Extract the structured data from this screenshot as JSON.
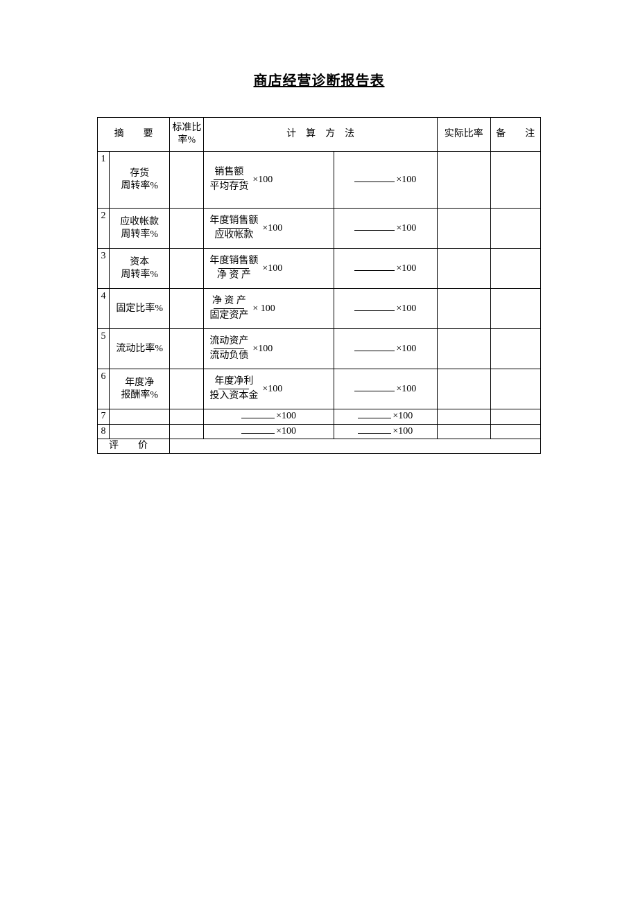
{
  "title": "商店经营诊断报告表",
  "headers": {
    "summary": "摘　　要",
    "standard_rate": "标准比率%",
    "calc_method": "计　算　方　法",
    "actual_rate": "实际比率",
    "note": "备　　注"
  },
  "rows": [
    {
      "num": "1",
      "summary_l1": "存货",
      "summary_l2": "周转率%",
      "numerator": "销售额",
      "denominator": "平均存货",
      "multiplier": "×100",
      "blank_mult": "×100"
    },
    {
      "num": "2",
      "summary_l1": "应收帐款",
      "summary_l2": "周转率%",
      "numerator": "年度销售额",
      "denominator": "应收帐款",
      "multiplier": "×100",
      "blank_mult": "×100"
    },
    {
      "num": "3",
      "summary_l1": "资本",
      "summary_l2": "周转率%",
      "numerator": "年度销售额",
      "denominator": "净 资 产",
      "multiplier": "×100",
      "blank_mult": "×100"
    },
    {
      "num": "4",
      "summary_l1": "固定比率%",
      "summary_l2": "",
      "numerator": "净 资 产",
      "denominator": "固定资产",
      "multiplier": "× 100",
      "blank_mult": "×100"
    },
    {
      "num": "5",
      "summary_l1": "流动比率%",
      "summary_l2": "",
      "numerator": "流动资产",
      "denominator": "流动负债",
      "multiplier": "×100",
      "blank_mult": "×100"
    },
    {
      "num": "6",
      "summary_l1": "年度净",
      "summary_l2": "报酬率%",
      "numerator": "年度净利",
      "denominator": "投入资本金",
      "multiplier": "×100",
      "blank_mult": "×100"
    },
    {
      "num": "7",
      "summary_l1": "",
      "summary_l2": "",
      "numerator": "",
      "denominator": "",
      "multiplier": "×100",
      "blank_mult": "×100"
    },
    {
      "num": "8",
      "summary_l1": "",
      "summary_l2": "",
      "numerator": "",
      "denominator": "",
      "multiplier": "×100",
      "blank_mult": "×100"
    }
  ],
  "footer": {
    "eval_label": "评　　价"
  }
}
